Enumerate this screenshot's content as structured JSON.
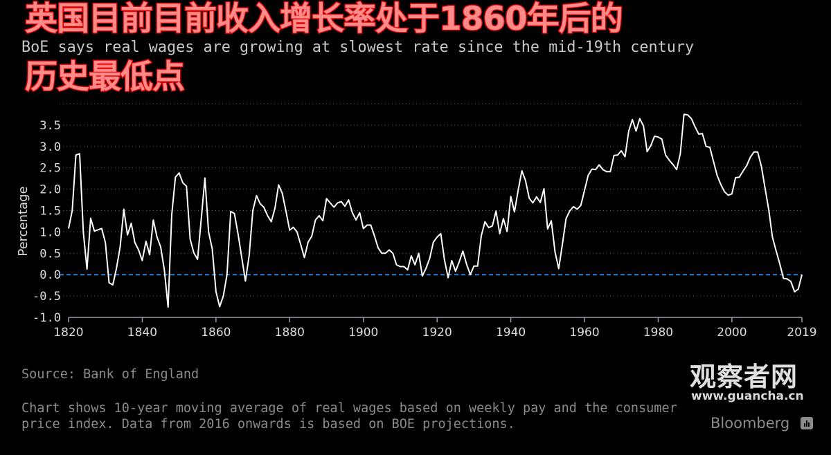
{
  "subtitle": "BoE says real wages are growing at slowest rate since the mid-19th century",
  "overlay": {
    "line1": "英国目前目前收入增长率处于1860年后的",
    "line2": "历史最低点"
  },
  "source": "Source: Bank of England",
  "note": "Chart shows 10-year moving average of real wages based on weekly pay and the consumer\nprice index. Data from 2016 onwards is based on BOE projections.",
  "watermark": {
    "name": "观察者网",
    "url": "www.guancha.cn"
  },
  "brand": "Bloomberg",
  "colors": {
    "background": "#000000",
    "line": "#ffffff",
    "zero_line": "#2a7fd8",
    "grid": "#666666",
    "overlay_fill": "#ff8a8a",
    "overlay_stroke": "#e00000"
  },
  "chart_data": {
    "type": "line",
    "ylabel": "Percentage",
    "xlim": [
      1820,
      2019
    ],
    "ylim": [
      -1.0,
      4.0
    ],
    "yticks": [
      "-1.0",
      "-0.5",
      "0.0",
      "0.5",
      "1.0",
      "1.5",
      "2.0",
      "2.5",
      "3.0",
      "3.5"
    ],
    "xticks": [
      "1820",
      "1840",
      "1860",
      "1880",
      "1900",
      "1920",
      "1940",
      "1960",
      "1980",
      "2000",
      "2019"
    ],
    "grid": true,
    "reference_line": 0.0,
    "x_start": 1820,
    "values": [
      1.08,
      1.5,
      2.8,
      2.83,
      1.0,
      0.13,
      1.32,
      1.02,
      1.05,
      1.08,
      0.75,
      -0.19,
      -0.24,
      0.15,
      0.65,
      1.53,
      0.93,
      1.2,
      0.75,
      0.58,
      0.33,
      0.78,
      0.47,
      1.28,
      0.88,
      0.65,
      0.1,
      -0.76,
      1.4,
      2.28,
      2.38,
      2.15,
      2.07,
      0.83,
      0.51,
      0.36,
      1.3,
      2.26,
      1.0,
      0.6,
      -0.4,
      -0.75,
      -0.5,
      0.0,
      1.48,
      1.43,
      0.95,
      0.4,
      -0.15,
      0.45,
      1.5,
      1.85,
      1.66,
      1.58,
      1.38,
      1.24,
      1.55,
      2.1,
      1.9,
      1.48,
      1.04,
      1.11,
      1.0,
      0.7,
      0.4,
      0.76,
      0.9,
      1.28,
      1.38,
      1.26,
      1.78,
      1.68,
      1.58,
      1.68,
      1.71,
      1.6,
      1.75,
      1.45,
      1.28,
      1.45,
      1.08,
      1.16,
      1.16,
      0.91,
      0.63,
      0.5,
      0.5,
      0.58,
      0.5,
      0.23,
      0.19,
      0.19,
      0.11,
      0.44,
      0.23,
      0.5,
      -0.03,
      0.15,
      0.38,
      0.76,
      0.88,
      0.96,
      0.35,
      -0.07,
      0.33,
      0.08,
      0.3,
      0.55,
      0.25,
      0.0,
      0.2,
      0.2,
      0.91,
      1.24,
      1.1,
      1.14,
      1.49,
      0.96,
      1.31,
      1.01,
      1.83,
      1.47,
      1.97,
      2.43,
      2.2,
      1.79,
      1.68,
      1.82,
      1.69,
      2.01,
      1.07,
      1.26,
      0.53,
      0.14,
      0.71,
      1.31,
      1.49,
      1.59,
      1.53,
      1.62,
      1.97,
      2.32,
      2.47,
      2.46,
      2.57,
      2.46,
      2.41,
      2.41,
      2.79,
      2.8,
      2.9,
      2.76,
      3.36,
      3.63,
      3.36,
      3.65,
      3.48,
      2.88,
      3.02,
      3.24,
      3.22,
      3.17,
      2.8,
      2.68,
      2.58,
      2.46,
      2.83,
      3.75,
      3.74,
      3.65,
      3.46,
      3.29,
      3.3,
      3.0,
      2.98,
      2.65,
      2.32,
      2.11,
      1.94,
      1.86,
      1.89,
      2.27,
      2.28,
      2.42,
      2.55,
      2.75,
      2.87,
      2.87,
      2.53,
      2.02,
      1.52,
      0.88,
      0.56,
      0.25,
      -0.09,
      -0.1,
      -0.16,
      -0.4,
      -0.34,
      0.0
    ]
  }
}
